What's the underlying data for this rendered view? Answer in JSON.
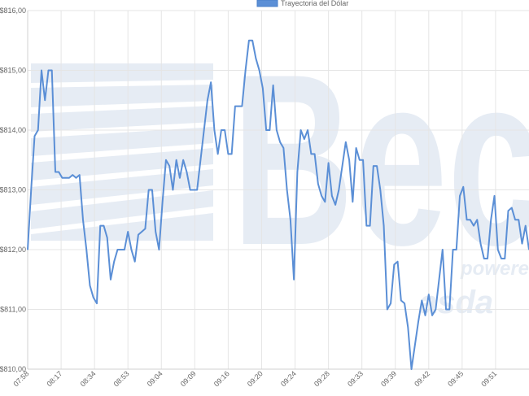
{
  "chart_data": {
    "type": "line",
    "title": "",
    "xlabel": "",
    "ylabel": "",
    "ylim": [
      810,
      816
    ],
    "grid": true,
    "legend_position": "top-center",
    "series": [
      {
        "name": "Trayectoria del Dólar",
        "color": "#5b8fd6",
        "values": [
          812.0,
          813.0,
          813.9,
          814.0,
          815.0,
          814.5,
          815.0,
          815.0,
          813.3,
          813.3,
          813.2,
          813.2,
          813.2,
          813.25,
          813.2,
          813.25,
          812.5,
          812.0,
          811.4,
          811.2,
          811.1,
          812.4,
          812.4,
          812.2,
          811.5,
          811.8,
          812.0,
          812.0,
          812.0,
          812.3,
          812.0,
          811.8,
          812.25,
          812.3,
          812.35,
          813.0,
          813.0,
          812.3,
          812.0,
          812.8,
          813.5,
          813.4,
          813.0,
          813.5,
          813.2,
          813.5,
          813.3,
          813.0,
          813.0,
          813.0,
          813.5,
          814.0,
          814.5,
          814.8,
          814.0,
          813.6,
          814.0,
          814.0,
          813.6,
          813.6,
          814.4,
          814.4,
          814.4,
          815.0,
          815.5,
          815.5,
          815.2,
          815.0,
          814.7,
          814.0,
          814.0,
          814.75,
          814.0,
          813.8,
          813.7,
          813.0,
          812.5,
          811.5,
          813.3,
          814.0,
          813.85,
          814.0,
          813.6,
          813.6,
          813.1,
          812.9,
          812.8,
          813.45,
          812.9,
          812.75,
          813.0,
          813.4,
          813.8,
          813.5,
          812.8,
          813.7,
          813.5,
          813.5,
          812.4,
          812.4,
          813.4,
          813.4,
          813.0,
          812.4,
          811.0,
          811.1,
          811.75,
          811.8,
          811.15,
          811.1,
          810.7,
          810.0,
          810.4,
          810.8,
          811.15,
          810.9,
          811.25,
          810.9,
          811.0,
          811.5,
          812.0,
          811.0,
          811.0,
          812.0,
          812.0,
          812.9,
          813.05,
          812.5,
          812.5,
          812.4,
          812.5,
          812.1,
          811.85,
          811.85,
          812.5,
          812.9,
          812.0,
          811.85,
          811.85,
          812.65,
          812.7,
          812.5,
          812.5,
          812.1,
          812.4,
          812.0
        ]
      }
    ],
    "y_ticks": [
      "$810,00",
      "$811,00",
      "$812,00",
      "$813,00",
      "$814,00",
      "$815,00",
      "$816,00"
    ],
    "x_ticks": [
      "07:58",
      "08:17",
      "08:34",
      "08:53",
      "09:04",
      "09:09",
      "09:16",
      "09:20",
      "09:24",
      "09:28",
      "09:33",
      "09:39",
      "09:42",
      "09:45",
      "09:51"
    ]
  },
  "watermark": {
    "big_text": "Bec",
    "sub_text_1": "powered",
    "sub_text_2": "asda"
  }
}
